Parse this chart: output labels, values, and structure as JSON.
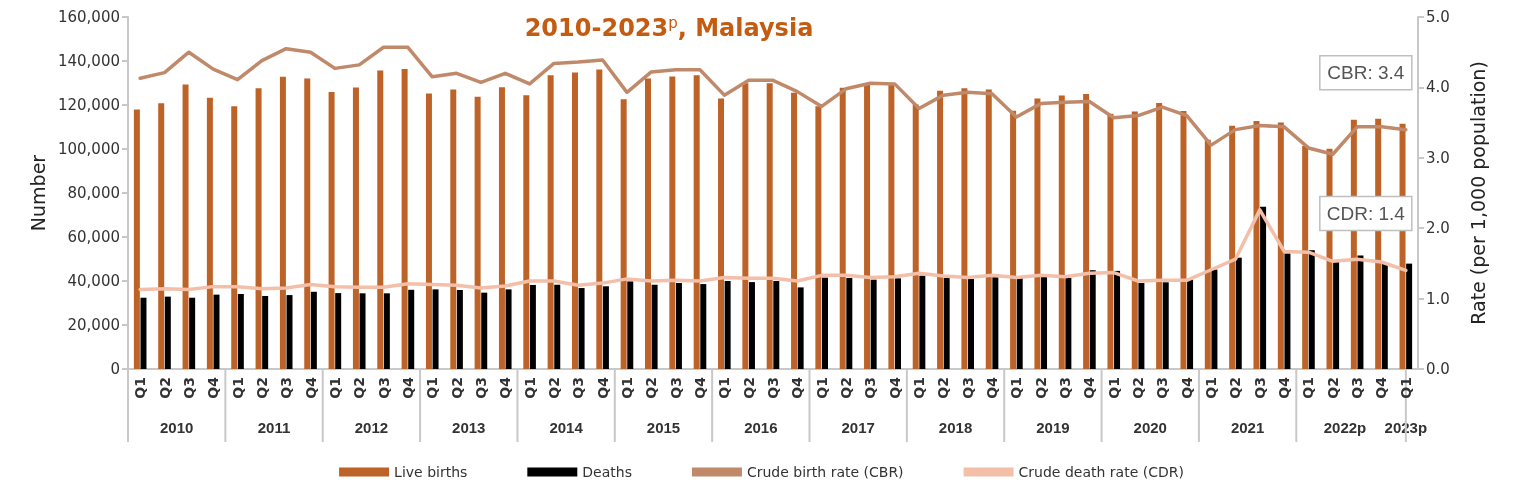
{
  "chart_data": {
    "type": "bar",
    "title": "2010-2023$^{p}$, Malaysia",
    "categories": [
      "Q1",
      "Q2",
      "Q3",
      "Q4",
      "Q1",
      "Q2",
      "Q3",
      "Q4",
      "Q1",
      "Q2",
      "Q3",
      "Q4",
      "Q1",
      "Q2",
      "Q3",
      "Q4",
      "Q1",
      "Q2",
      "Q3",
      "Q4",
      "Q1",
      "Q2",
      "Q3",
      "Q4",
      "Q1",
      "Q2",
      "Q3",
      "Q4",
      "Q1",
      "Q2",
      "Q3",
      "Q4",
      "Q1",
      "Q2",
      "Q3",
      "Q4",
      "Q1",
      "Q2",
      "Q3",
      "Q4",
      "Q1",
      "Q2",
      "Q3",
      "Q4",
      "Q1",
      "Q2",
      "Q3",
      "Q4",
      "Q1",
      "Q2",
      "Q3",
      "Q4",
      "Q1"
    ],
    "ylabel": "Number",
    "y2label": "Rate (per 1,000 population)",
    "ylim": [
      0,
      160000
    ],
    "yticks": [
      0,
      {
        "value": 20000,
        "label": "20,000"
      },
      {
        "value": 40000,
        "label": "40,000"
      },
      {
        "value": 60000,
        "label": "60,000"
      },
      {
        "value": 80000,
        "label": "80,000"
      },
      {
        "value": 100000,
        "label": "100,000"
      },
      {
        "value": 120000,
        "label": "120,000"
      },
      {
        "value": 140000,
        "label": "140,000"
      },
      {
        "value": 160000,
        "label": "160,000"
      }
    ],
    "y2lim": [
      0,
      5
    ],
    "y2ticks": [
      {
        "value": 0,
        "label": "0.0"
      },
      {
        "value": 1,
        "label": "1.0"
      },
      {
        "value": 2,
        "label": "2.0"
      },
      {
        "value": 3,
        "label": "3.0"
      },
      {
        "value": 4,
        "label": "4.0"
      },
      {
        "value": 5,
        "label": "5.0"
      }
    ],
    "series": [
      {
        "name": "Live births",
        "color": "#bd6328",
        "values": [
          117900,
          120800,
          129300,
          123300,
          119400,
          127600,
          132800,
          132000,
          125900,
          127900,
          135700,
          136400,
          125200,
          127000,
          123800,
          128100,
          124400,
          133500,
          134800,
          136100,
          122600,
          132000,
          132900,
          133500,
          123000,
          129900,
          129900,
          125600,
          119400,
          127800,
          129600,
          129600,
          120200,
          126500,
          127600,
          127100,
          117400,
          123000,
          124300,
          125000,
          116000,
          117000,
          120900,
          117300,
          104200,
          110600,
          112700,
          112100,
          101400,
          100100,
          113300,
          113800,
          111500
        ]
      },
      {
        "name": "Deaths",
        "color": "#000000",
        "values": [
          32400,
          32900,
          32400,
          33800,
          34100,
          33200,
          33600,
          35100,
          34500,
          34400,
          34400,
          36000,
          36200,
          35900,
          34700,
          36200,
          38200,
          38300,
          36800,
          37600,
          39800,
          38300,
          39100,
          38600,
          40000,
          39500,
          40000,
          37100,
          41500,
          41400,
          40600,
          41200,
          42400,
          41400,
          40900,
          41700,
          41700,
          41800,
          41400,
          44900,
          44600,
          39100,
          39400,
          40600,
          45200,
          50600,
          73800,
          52500,
          54000,
          48700,
          51600,
          47900,
          47900
        ]
      },
      {
        "name": "Crude birth rate (CBR)",
        "type": "line",
        "axis": "y2",
        "color": "#c08a6a",
        "values": [
          4.13,
          4.21,
          4.5,
          4.26,
          4.11,
          4.38,
          4.55,
          4.5,
          4.27,
          4.32,
          4.57,
          4.57,
          4.15,
          4.2,
          4.07,
          4.2,
          4.05,
          4.34,
          4.36,
          4.39,
          3.93,
          4.22,
          4.25,
          4.25,
          3.89,
          4.1,
          4.1,
          3.94,
          3.73,
          3.98,
          4.06,
          4.05,
          3.7,
          3.89,
          3.93,
          3.91,
          3.58,
          3.77,
          3.79,
          3.8,
          3.57,
          3.6,
          3.72,
          3.6,
          3.18,
          3.4,
          3.46,
          3.44,
          3.14,
          3.05,
          3.44,
          3.44,
          3.4
        ]
      },
      {
        "name": "Crude death rate (CDR)",
        "type": "line",
        "axis": "y2",
        "color": "#f4bfa8",
        "values": [
          1.13,
          1.14,
          1.13,
          1.17,
          1.17,
          1.14,
          1.15,
          1.2,
          1.17,
          1.16,
          1.16,
          1.21,
          1.2,
          1.19,
          1.15,
          1.18,
          1.25,
          1.25,
          1.19,
          1.22,
          1.28,
          1.25,
          1.26,
          1.25,
          1.3,
          1.29,
          1.29,
          1.25,
          1.33,
          1.33,
          1.3,
          1.31,
          1.36,
          1.32,
          1.3,
          1.33,
          1.3,
          1.33,
          1.31,
          1.36,
          1.37,
          1.25,
          1.26,
          1.26,
          1.41,
          1.56,
          2.26,
          1.67,
          1.66,
          1.53,
          1.56,
          1.52,
          1.4
        ]
      }
    ],
    "annotations": [
      {
        "text": "2010"
      },
      {
        "text": "2011"
      },
      {
        "text": "2012"
      },
      {
        "text": "2013"
      },
      {
        "text": "2014"
      },
      {
        "text": "2015"
      },
      {
        "text": "2016"
      },
      {
        "text": "2017"
      },
      {
        "text": "2018"
      },
      {
        "text": "2019"
      },
      {
        "text": "2020"
      },
      {
        "text": "2021"
      },
      {
        "text": "2022p"
      },
      {
        "text": "2023p"
      },
      "CBR: 3.4",
      "CDR: 1.4"
    ],
    "legend": "bottom",
    "grid": false,
    "marker": "none",
    "line_style": "solid"
  }
}
